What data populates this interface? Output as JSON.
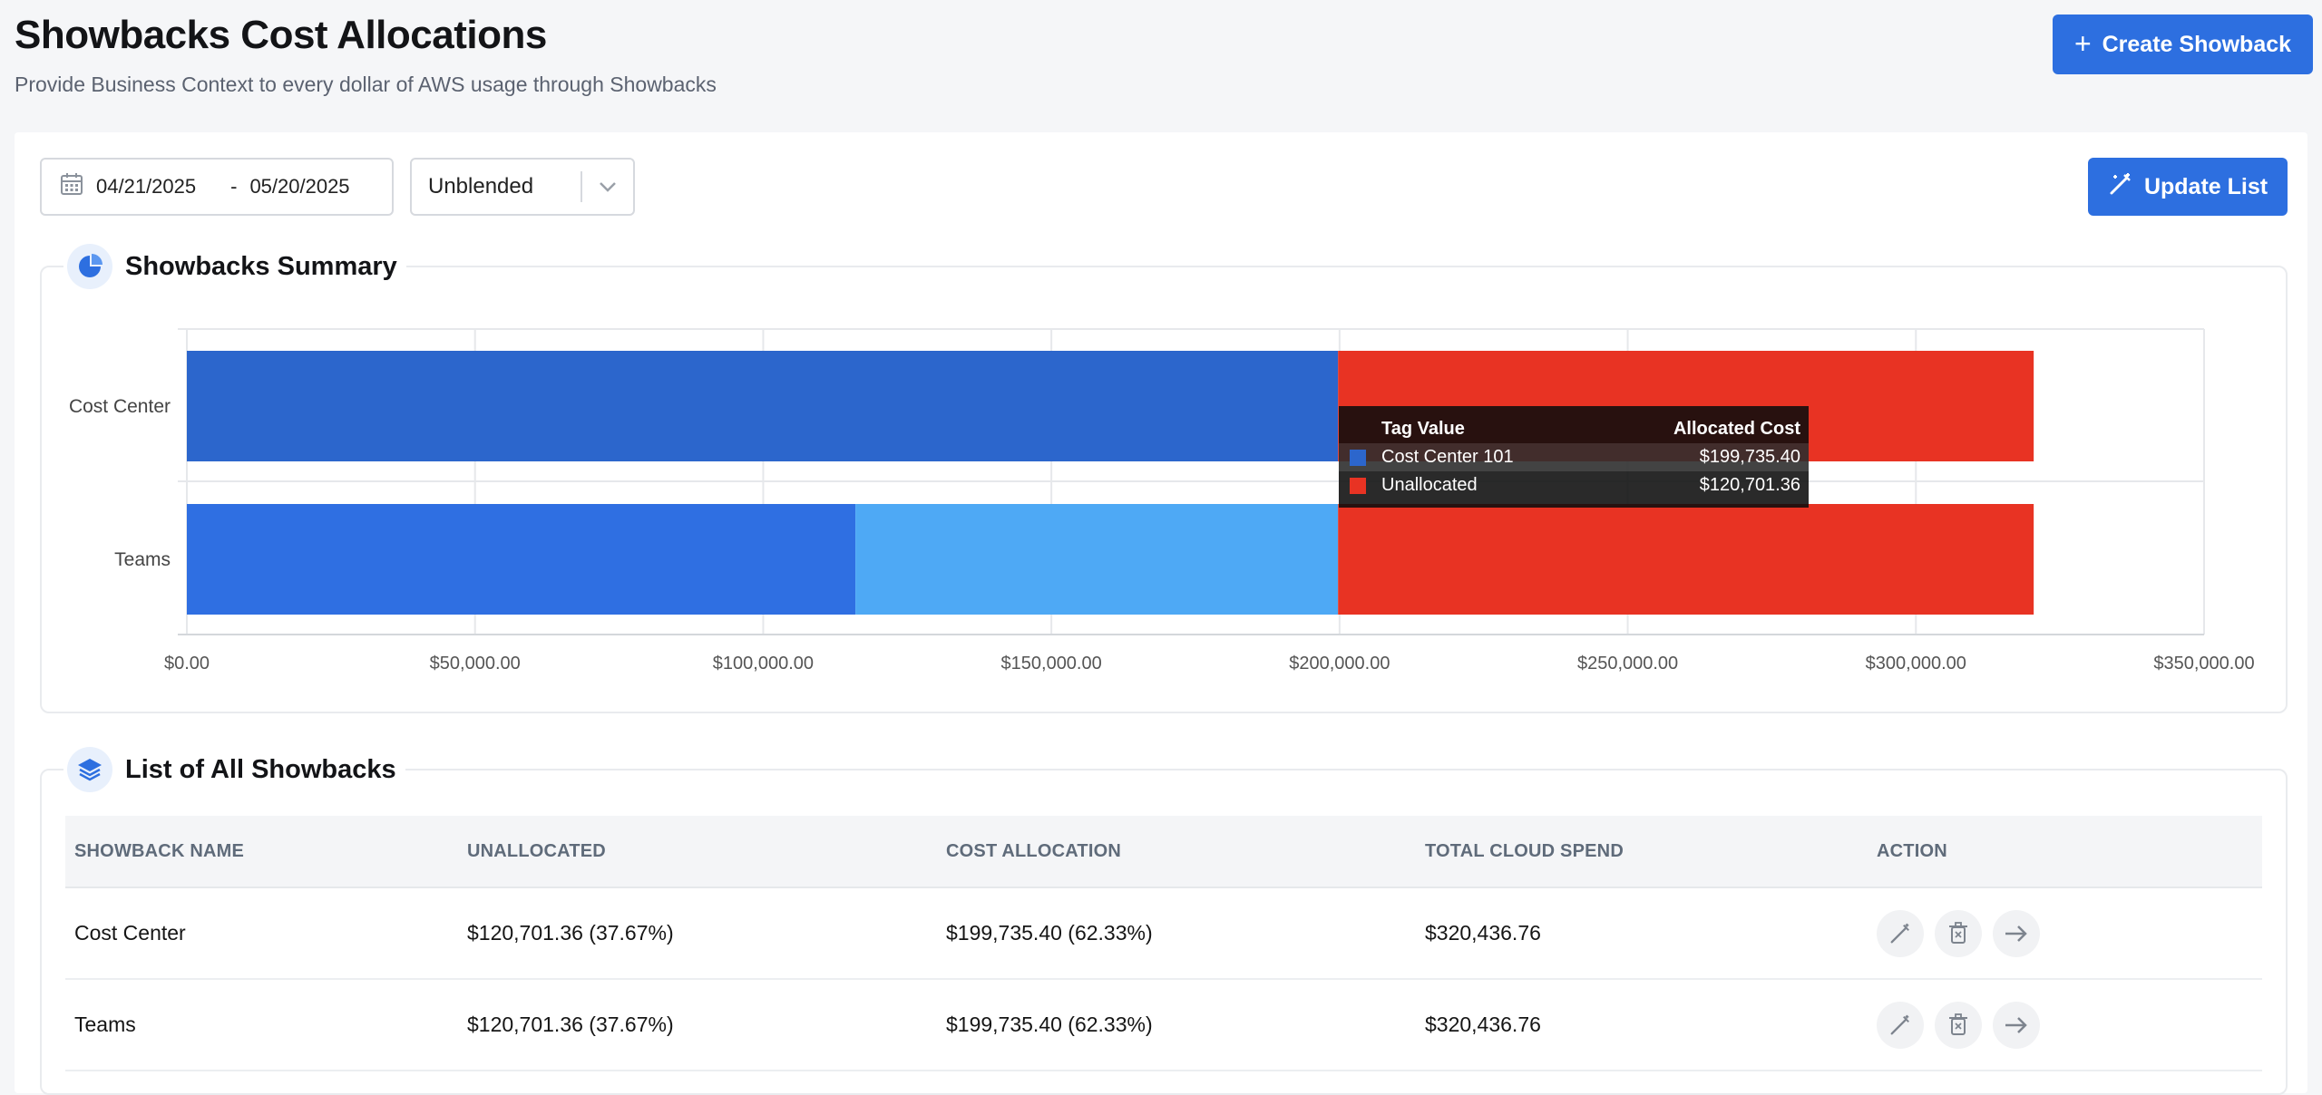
{
  "header": {
    "title": "Showbacks Cost Allocations",
    "subtitle": "Provide Business Context to every dollar of AWS usage through Showbacks",
    "create_button": "Create Showback"
  },
  "filters": {
    "start_date": "04/21/2025",
    "separator": "-",
    "end_date": "05/20/2025",
    "cost_type": "Unblended",
    "update_button": "Update List"
  },
  "summary": {
    "title": "Showbacks Summary"
  },
  "chart_data": {
    "type": "bar",
    "orientation": "horizontal",
    "stacked": true,
    "categories": [
      "Cost Center",
      "Teams"
    ],
    "series": [
      {
        "name": "Cost Center 101",
        "color": "#2c66cc",
        "values": [
          199735.4,
          0
        ]
      },
      {
        "name": "",
        "color": "#2f6fe2",
        "values": [
          0,
          116000
        ]
      },
      {
        "name": "",
        "color": "#4ea9f5",
        "values": [
          0,
          83735.4
        ]
      },
      {
        "name": "Unallocated",
        "color": "#e83323",
        "values": [
          120701.36,
          120701.36
        ]
      }
    ],
    "xlim": [
      0,
      350000
    ],
    "xticks": [
      0,
      50000,
      100000,
      150000,
      200000,
      250000,
      300000,
      350000
    ],
    "xtick_labels": [
      "$0.00",
      "$50,000.00",
      "$100,000.00",
      "$150,000.00",
      "$200,000.00",
      "$250,000.00",
      "$300,000.00",
      "$350,000.00"
    ],
    "grid": true
  },
  "tooltip": {
    "header_name": "Tag Value",
    "header_value": "Allocated Cost",
    "rows": [
      {
        "name": "Cost Center 101",
        "value": "$199,735.40",
        "color": "#2c66cc"
      },
      {
        "name": "Unallocated",
        "value": "$120,701.36",
        "color": "#e83323"
      }
    ]
  },
  "list": {
    "title": "List of All Showbacks",
    "columns": [
      "SHOWBACK NAME",
      "UNALLOCATED",
      "COST ALLOCATION",
      "TOTAL CLOUD SPEND",
      "ACTION"
    ],
    "rows": [
      {
        "name": "Cost Center",
        "unallocated": "$120,701.36 (37.67%)",
        "allocation": "$199,735.40 (62.33%)",
        "total": "$320,436.76"
      },
      {
        "name": "Teams",
        "unallocated": "$120,701.36 (37.67%)",
        "allocation": "$199,735.40 (62.33%)",
        "total": "$320,436.76"
      }
    ],
    "action_icons": [
      "edit-icon",
      "delete-icon",
      "arrow-right-icon"
    ]
  }
}
